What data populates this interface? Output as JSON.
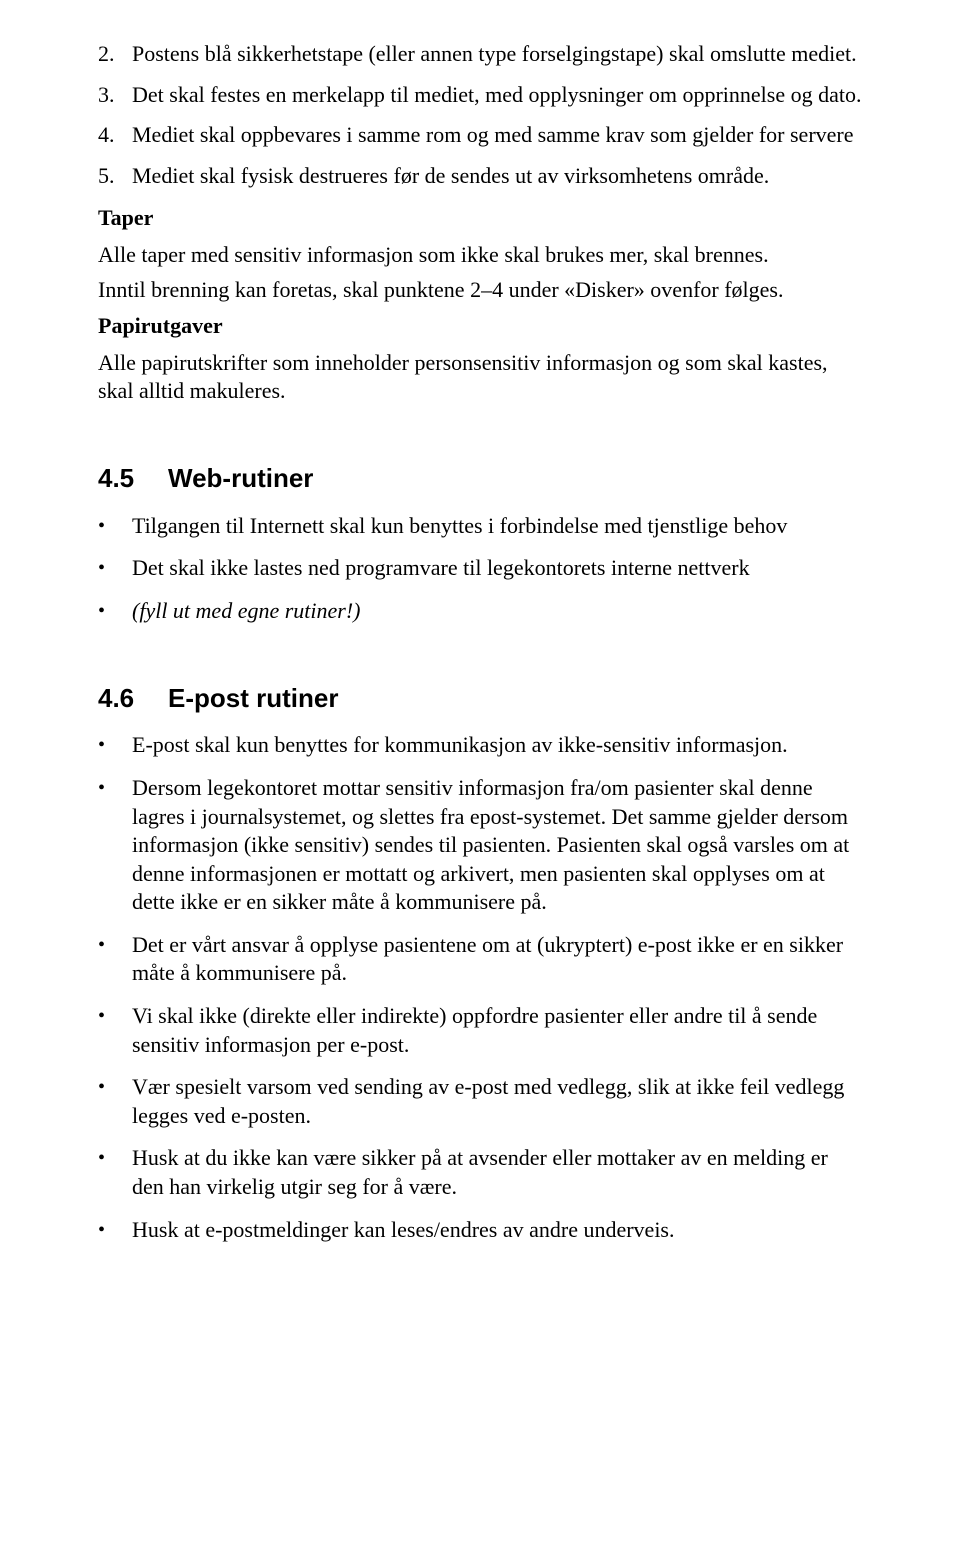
{
  "numbered": [
    {
      "n": "2.",
      "t": "Postens blå sikkerhetstape (eller annen type forselgingstape) skal omslutte mediet."
    },
    {
      "n": "3.",
      "t": "Det skal festes en merkelapp til mediet, med opplysninger om opprinnelse og dato."
    },
    {
      "n": "4.",
      "t": "Mediet skal oppbevares i samme rom og med samme krav som gjelder for servere"
    },
    {
      "n": "5.",
      "t": "Mediet skal fysisk destrueres før de sendes ut av virksomhetens område."
    }
  ],
  "taper": {
    "label": "Taper",
    "p1": "Alle taper med sensitiv informasjon som ikke skal brukes mer, skal brennes.",
    "p2": "Inntil brenning kan foretas, skal punktene 2–4 under «Disker» ovenfor følges."
  },
  "papir": {
    "label": "Papirutgaver",
    "p1": "Alle papirutskrifter som inneholder personsensitiv informasjon og som skal kastes, skal alltid makuleres."
  },
  "sec45": {
    "num": "4.5",
    "title": "Web-rutiner",
    "items": [
      {
        "text": "Tilgangen til Internett skal kun benyttes i forbindelse med tjenstlige behov",
        "italic": false
      },
      {
        "text": "Det skal ikke lastes ned programvare til legekontorets interne nettverk",
        "italic": false
      },
      {
        "text": "(fyll ut med egne rutiner!)",
        "italic": true
      }
    ]
  },
  "sec46": {
    "num": "4.6",
    "title": "E-post rutiner",
    "items": [
      "E-post skal kun benyttes for kommunikasjon av ikke-sensitiv informasjon.",
      "Dersom legekontoret mottar sensitiv informasjon fra/om pasienter skal denne lagres i journalsystemet, og slettes fra epost-systemet. Det samme gjelder dersom informasjon (ikke sensitiv) sendes til pasienten. Pasienten skal også varsles om at denne informasjonen er mottatt og arkivert, men pasienten skal opplyses om at dette ikke er en sikker måte å kommunisere på.",
      "Det er vårt ansvar å opplyse pasientene om at (ukryptert) e-post ikke er en sikker måte å kommunisere på.",
      "Vi skal ikke (direkte eller indirekte) oppfordre pasienter eller andre til å sende sensitiv informasjon per e-post.",
      "Vær spesielt varsom ved sending av e-post med vedlegg, slik at ikke feil vedlegg legges ved e-posten.",
      "Husk at du ikke kan være sikker på at avsender eller mottaker av en melding er den han virkelig utgir seg for å være.",
      "Husk at e-postmeldinger kan leses/endres av andre underveis."
    ]
  },
  "bullet": "•"
}
